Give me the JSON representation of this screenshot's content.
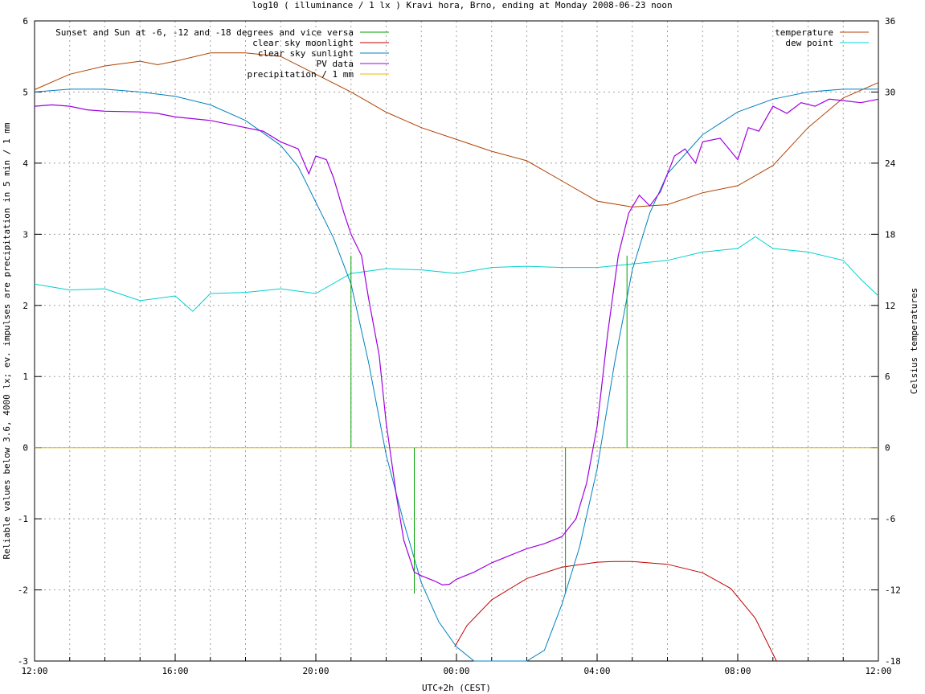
{
  "chart_data": {
    "type": "line",
    "title": "log10 ( illuminance / 1 lx ) Kravi hora, Brno, ending at Monday 2008-06-23 noon",
    "xlabel": "UTC+2h (CEST)",
    "ylabel_left": "Reliable values below 3.6, 4000 lx; ev. impulses are precipitation in 5 min / 1 mm",
    "ylabel_right": "Celsius temperatures",
    "xlim": [
      0,
      24
    ],
    "ylim": [
      -3,
      6
    ],
    "y2lim": [
      -18,
      36
    ],
    "grid": true,
    "legend_left_placement": "top-left",
    "legend_right_placement": "top-right",
    "x_tick_labels": [
      "12:00",
      "16:00",
      "20:00",
      "00:00",
      "04:00",
      "08:00",
      "12:00"
    ],
    "y_tick_labels": [
      "-3",
      "-2",
      "-1",
      "0",
      "1",
      "2",
      "3",
      "4",
      "5",
      "6"
    ],
    "y2_tick_labels": [
      "-18",
      "-12",
      "-6",
      "0",
      "6",
      "12",
      "18",
      "24",
      "30",
      "36"
    ],
    "series": [
      {
        "name": "Sunset and Sun at -6, -12 and -18 degrees and vice versa",
        "axis": "left",
        "kind": "impulses",
        "color": "#00a000",
        "values": [
          {
            "x": 9.0,
            "y": 2.7
          },
          {
            "x": 10.8,
            "y": -2.05
          },
          {
            "x": 15.1,
            "y": -2.05
          },
          {
            "x": 16.85,
            "y": 2.7
          }
        ]
      },
      {
        "name": "clear sky moonlight",
        "axis": "left",
        "color": "#c00000",
        "x": [
          11.95,
          12.3,
          13,
          14,
          15,
          16,
          16.5,
          17,
          18,
          19,
          19.8,
          20.5,
          21.1
        ],
        "y": [
          -2.8,
          -2.5,
          -2.14,
          -1.84,
          -1.68,
          -1.61,
          -1.6,
          -1.6,
          -1.64,
          -1.76,
          -1.98,
          -2.4,
          -3.0
        ]
      },
      {
        "name": "clear sky sunlight",
        "axis": "left",
        "color": "#0080c0",
        "x": [
          0,
          1,
          2,
          3,
          4,
          5,
          6,
          7,
          7.5,
          8,
          8.5,
          9,
          9.5,
          10,
          10.5,
          11,
          11.5,
          12,
          12.5,
          13,
          13.5,
          14,
          14.5,
          15,
          15.5,
          16,
          16.5,
          17,
          17.5,
          18,
          19,
          20,
          21,
          22,
          23,
          24
        ],
        "y": [
          5.0,
          5.04,
          5.04,
          5.0,
          4.94,
          4.82,
          4.6,
          4.25,
          3.95,
          3.45,
          2.95,
          2.3,
          1.2,
          -0.1,
          -1.05,
          -1.9,
          -2.45,
          -2.8,
          -3.0,
          -3.2,
          -3.3,
          -3.2,
          -2.85,
          -2.2,
          -1.4,
          -0.3,
          1.2,
          2.5,
          3.3,
          3.85,
          4.4,
          4.72,
          4.9,
          5.0,
          5.04,
          5.04
        ]
      },
      {
        "name": "PV data",
        "axis": "left",
        "color": "#a000e0",
        "x": [
          0,
          0.5,
          1,
          1.5,
          2,
          3,
          3.5,
          4,
          5,
          6,
          6.5,
          7,
          7.5,
          7.8,
          8,
          8.3,
          8.5,
          8.8,
          9,
          9.3,
          9.5,
          9.8,
          10,
          10.3,
          10.5,
          10.8,
          11,
          11.4,
          11.6,
          11.8,
          12,
          12.5,
          13,
          13.5,
          14,
          14.5,
          15,
          15.4,
          15.7,
          16,
          16.3,
          16.6,
          16.9,
          17.2,
          17.5,
          17.8,
          18.2,
          18.5,
          18.8,
          19,
          19.5,
          20,
          20.3,
          20.6,
          21,
          21.4,
          21.8,
          22.2,
          22.6,
          23,
          23.5,
          24
        ],
        "y": [
          4.8,
          4.82,
          4.8,
          4.75,
          4.73,
          4.72,
          4.7,
          4.65,
          4.6,
          4.5,
          4.45,
          4.3,
          4.2,
          3.85,
          4.1,
          4.05,
          3.8,
          3.3,
          3.0,
          2.7,
          2.1,
          1.3,
          0.35,
          -0.7,
          -1.3,
          -1.75,
          -1.8,
          -1.88,
          -1.93,
          -1.92,
          -1.85,
          -1.75,
          -1.62,
          -1.52,
          -1.42,
          -1.35,
          -1.25,
          -1.0,
          -0.5,
          0.3,
          1.6,
          2.7,
          3.3,
          3.55,
          3.4,
          3.6,
          4.1,
          4.2,
          4.0,
          4.3,
          4.35,
          4.05,
          4.5,
          4.45,
          4.8,
          4.7,
          4.85,
          4.8,
          4.9,
          4.88,
          4.85,
          4.9
        ]
      },
      {
        "name": "precipitation / 1 mm",
        "axis": "left",
        "color": "#e0c000",
        "x": [
          0,
          24
        ],
        "y": [
          0,
          0
        ]
      },
      {
        "name": "temperature",
        "axis": "right",
        "color": "#b04000",
        "x": [
          0,
          1,
          2,
          3,
          3.5,
          4,
          5,
          6,
          7,
          8,
          9,
          10,
          11,
          12,
          13,
          14,
          15,
          16,
          17,
          18,
          19,
          20,
          21,
          22,
          23,
          24
        ],
        "y": [
          30.2,
          31.5,
          32.2,
          32.6,
          32.3,
          32.6,
          33.3,
          33.3,
          33.0,
          31.5,
          30.0,
          28.3,
          27.0,
          26.0,
          25.0,
          24.2,
          22.5,
          20.8,
          20.3,
          20.5,
          21.5,
          22.1,
          23.8,
          27.0,
          29.5,
          30.8
        ]
      },
      {
        "name": "dew point",
        "axis": "right",
        "color": "#00d0d0",
        "x": [
          0,
          1,
          2,
          3,
          4,
          4.5,
          5,
          6,
          7,
          8,
          9,
          10,
          11,
          12,
          13,
          14,
          15,
          16,
          17,
          18,
          19,
          20,
          20.5,
          21,
          22,
          23,
          23.5,
          24
        ],
        "y": [
          13.8,
          13.3,
          13.4,
          12.4,
          12.8,
          11.5,
          13.0,
          13.1,
          13.4,
          13.0,
          14.7,
          15.1,
          15.0,
          14.7,
          15.2,
          15.3,
          15.2,
          15.2,
          15.5,
          15.8,
          16.5,
          16.8,
          17.8,
          16.8,
          16.5,
          15.8,
          14.2,
          12.8
        ]
      }
    ]
  }
}
